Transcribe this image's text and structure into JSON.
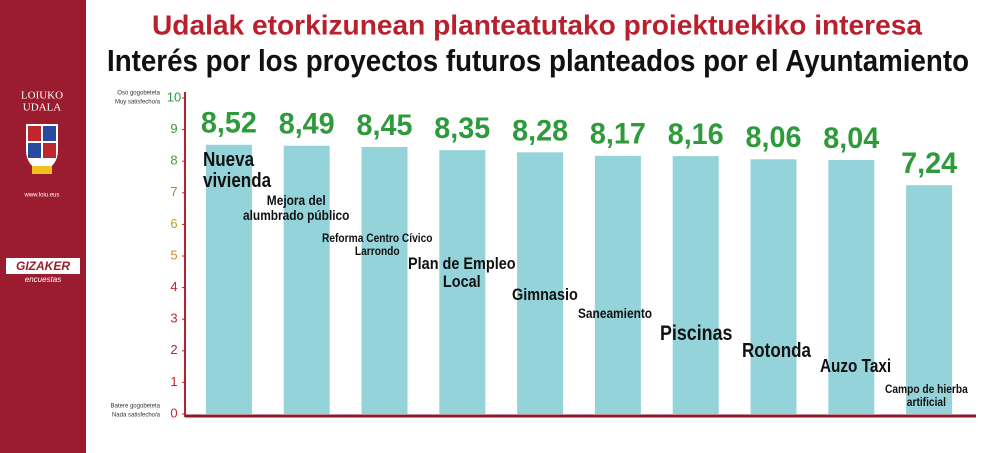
{
  "chart_data": {
    "type": "bar",
    "title": "Udalak etorkizunean planteatutako proiektuekiko interesa",
    "subtitle": "Interés por los proyectos futuros planteados por el Ayuntamiento",
    "y_top_label": [
      "Oso gogobeteta",
      "Muy satisfecho/a"
    ],
    "y_bottom_label": [
      "Batere gogobeteta",
      "Nada satisfecho/a"
    ],
    "categories": [
      "Nueva\nvivienda",
      "Mejora del\nalumbrado público",
      "Reforma Centro Cívico\nLarrondo",
      "Plan de Empleo\nLocal",
      "Gimnasio",
      "Saneamiento",
      "Piscinas",
      "Rotonda",
      "Auzo Taxi",
      "Campo de hierba\nartificial"
    ],
    "values": [
      8.52,
      8.49,
      8.45,
      8.35,
      8.28,
      8.17,
      8.16,
      8.06,
      8.04,
      7.24
    ],
    "value_labels": [
      "8,52",
      "8,49",
      "8,45",
      "8,35",
      "8,28",
      "8,17",
      "8,16",
      "8,06",
      "8,04",
      "7,24"
    ],
    "color": "#94d3d9",
    "value_label_color": "#2e9a3c",
    "ylim": [
      0,
      10
    ],
    "yticks": [
      0,
      1,
      2,
      3,
      4,
      5,
      6,
      7,
      8,
      9,
      10
    ],
    "ytick_colors": [
      "#c0272d",
      "#c0272d",
      "#c0272d",
      "#c0272d",
      "#c0272d",
      "#d98a1c",
      "#b8a21a",
      "#8a9a2a",
      "#4a9a34",
      "#3a9a3a",
      "#2e9a3c"
    ]
  },
  "sidebar": {
    "name_line1": "LOIUKO",
    "name_line2": "UDALA",
    "website": "www.loiu.eus",
    "brand": "GIZAKER",
    "brand_sub": "encuestas"
  }
}
